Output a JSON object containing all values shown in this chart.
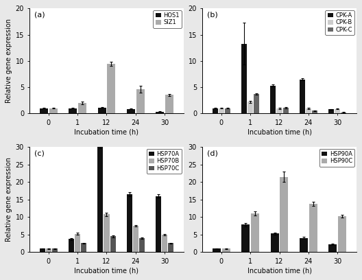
{
  "time_points": [
    0,
    1,
    12,
    24,
    30
  ],
  "panel_a": {
    "label": "(a)",
    "ylim": [
      0,
      20
    ],
    "yticks": [
      0,
      5,
      10,
      15,
      20
    ],
    "series": {
      "HOS1": {
        "values": [
          1.0,
          1.0,
          1.1,
          0.85,
          0.35
        ],
        "errors": [
          0.1,
          0.1,
          0.12,
          0.08,
          0.06
        ],
        "color": "#111111"
      },
      "SIZ1": {
        "values": [
          1.0,
          2.0,
          9.5,
          4.6,
          3.5
        ],
        "errors": [
          0.1,
          0.25,
          0.38,
          0.65,
          0.22
        ],
        "color": "#aaaaaa"
      }
    }
  },
  "panel_b": {
    "label": "(b)",
    "ylim": [
      0,
      20
    ],
    "yticks": [
      0,
      5,
      10,
      15,
      20
    ],
    "series": {
      "CPK-A": {
        "values": [
          1.0,
          13.3,
          5.3,
          6.5,
          0.8
        ],
        "errors": [
          0.1,
          4.0,
          0.18,
          0.25,
          0.08
        ],
        "color": "#111111"
      },
      "CPK-B": {
        "values": [
          1.0,
          2.2,
          1.0,
          1.0,
          0.85
        ],
        "errors": [
          0.1,
          0.18,
          0.12,
          0.12,
          0.08
        ],
        "color": "#cccccc"
      },
      "CPK-C": {
        "values": [
          1.0,
          3.7,
          1.1,
          0.5,
          0.22
        ],
        "errors": [
          0.1,
          0.18,
          0.1,
          0.08,
          0.04
        ],
        "color": "#666666"
      }
    }
  },
  "panel_c": {
    "label": "(c)",
    "ylim": [
      0,
      30
    ],
    "yticks": [
      0,
      5,
      10,
      15,
      20,
      25,
      30
    ],
    "series": {
      "HSP70A": {
        "values": [
          1.0,
          3.7,
          30.0,
          16.5,
          16.0
        ],
        "errors": [
          0.1,
          0.25,
          0.38,
          0.55,
          0.45
        ],
        "color": "#111111"
      },
      "HSP70B": {
        "values": [
          1.0,
          5.2,
          10.8,
          7.5,
          5.0
        ],
        "errors": [
          0.1,
          0.28,
          0.48,
          0.28,
          0.18
        ],
        "color": "#aaaaaa"
      },
      "HSP70C": {
        "values": [
          1.0,
          2.5,
          4.5,
          4.0,
          2.5
        ],
        "errors": [
          0.1,
          0.18,
          0.28,
          0.18,
          0.18
        ],
        "color": "#555555"
      }
    }
  },
  "panel_d": {
    "label": "(d)",
    "ylim": [
      0,
      30
    ],
    "yticks": [
      0,
      5,
      10,
      15,
      20,
      25,
      30
    ],
    "series": {
      "HSP90A": {
        "values": [
          1.0,
          7.8,
          5.3,
          4.0,
          2.2
        ],
        "errors": [
          0.1,
          0.55,
          0.28,
          0.28,
          0.18
        ],
        "color": "#111111"
      },
      "HSP90C": {
        "values": [
          1.0,
          11.0,
          21.5,
          13.8,
          10.2
        ],
        "errors": [
          0.1,
          0.55,
          1.5,
          0.55,
          0.45
        ],
        "color": "#aaaaaa"
      }
    }
  },
  "xlabel": "Incubation time (h)",
  "ylabel": "Relative gene expression",
  "fig_facecolor": "#e8e8e8",
  "axes_facecolor": "#ffffff"
}
